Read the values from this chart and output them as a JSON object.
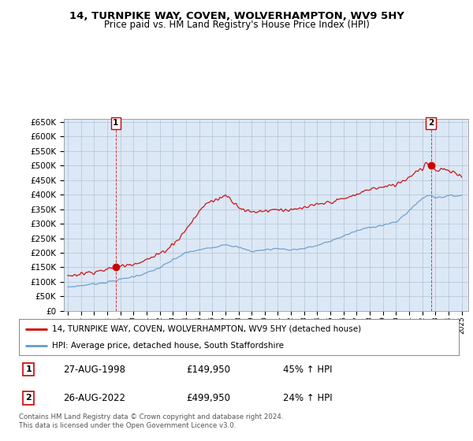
{
  "title": "14, TURNPIKE WAY, COVEN, WOLVERHAMPTON, WV9 5HY",
  "subtitle": "Price paid vs. HM Land Registry's House Price Index (HPI)",
  "legend_line1": "14, TURNPIKE WAY, COVEN, WOLVERHAMPTON, WV9 5HY (detached house)",
  "legend_line2": "HPI: Average price, detached house, South Staffordshire",
  "annotation1_date": "27-AUG-1998",
  "annotation1_price": "£149,950",
  "annotation1_hpi": "45% ↑ HPI",
  "annotation2_date": "26-AUG-2022",
  "annotation2_price": "£499,950",
  "annotation2_hpi": "24% ↑ HPI",
  "footer": "Contains HM Land Registry data © Crown copyright and database right 2024.\nThis data is licensed under the Open Government Licence v3.0.",
  "red_color": "#cc0000",
  "blue_color": "#6699cc",
  "background_color": "#dce8f5",
  "grid_color": "#b0c4d8",
  "ylim": [
    0,
    660000
  ],
  "yticks": [
    0,
    50000,
    100000,
    150000,
    200000,
    250000,
    300000,
    350000,
    400000,
    450000,
    500000,
    550000,
    600000,
    650000
  ],
  "sale1_year": 1998.65,
  "sale1_price": 149950,
  "sale2_year": 2022.65,
  "sale2_price": 499950,
  "xmin": 1994.7,
  "xmax": 2025.5
}
